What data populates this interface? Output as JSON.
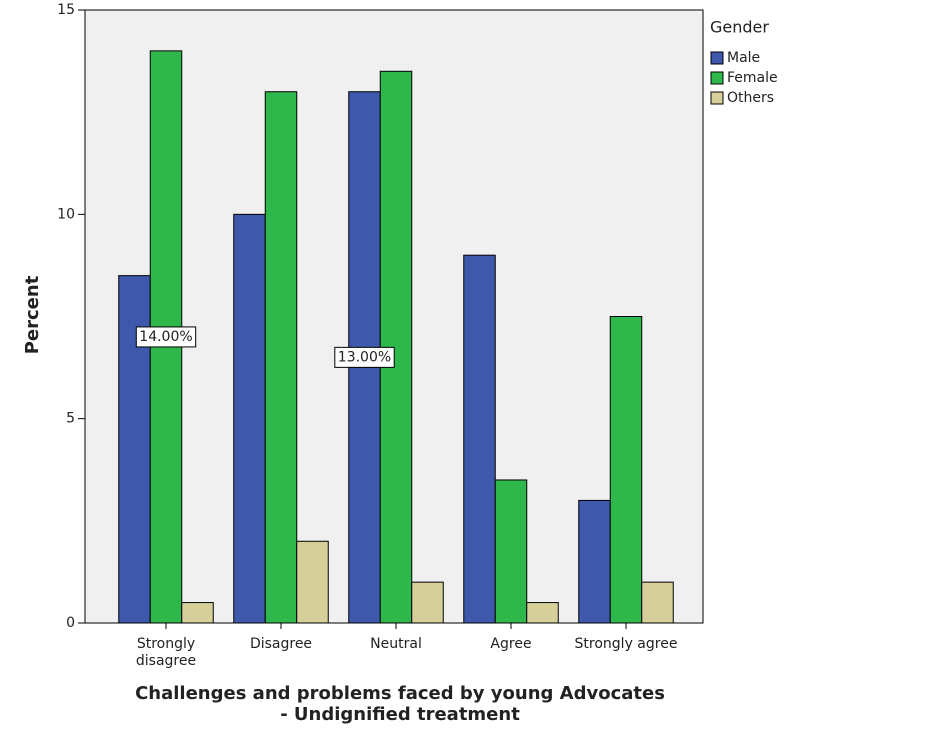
{
  "chart_data": {
    "type": "bar",
    "x_label": "Challenges and problems faced by young Advocates\n- Undignified treatment",
    "y_label": "Percent",
    "legend_title": "Gender",
    "categories": [
      "Strongly\ndisagree",
      "Disagree",
      "Neutral",
      "Agree",
      "Strongly agree"
    ],
    "series": [
      {
        "name": "Male",
        "color": "#3e58ac",
        "values": [
          8.5,
          10,
          13,
          9,
          3
        ],
        "value_labels": [
          null,
          null,
          "13.00%",
          null,
          null
        ]
      },
      {
        "name": "Female",
        "color": "#2eb84b",
        "values": [
          14,
          13,
          13.5,
          3.5,
          7.5
        ],
        "value_labels": [
          "14.00%",
          null,
          null,
          null,
          null
        ]
      },
      {
        "name": "Others",
        "color": "#d6cf9a",
        "values": [
          0.5,
          2,
          1,
          0.5,
          1
        ]
      }
    ],
    "ylim": [
      0,
      15
    ],
    "yticks": [
      0,
      5,
      10,
      15
    ],
    "grid": false
  }
}
